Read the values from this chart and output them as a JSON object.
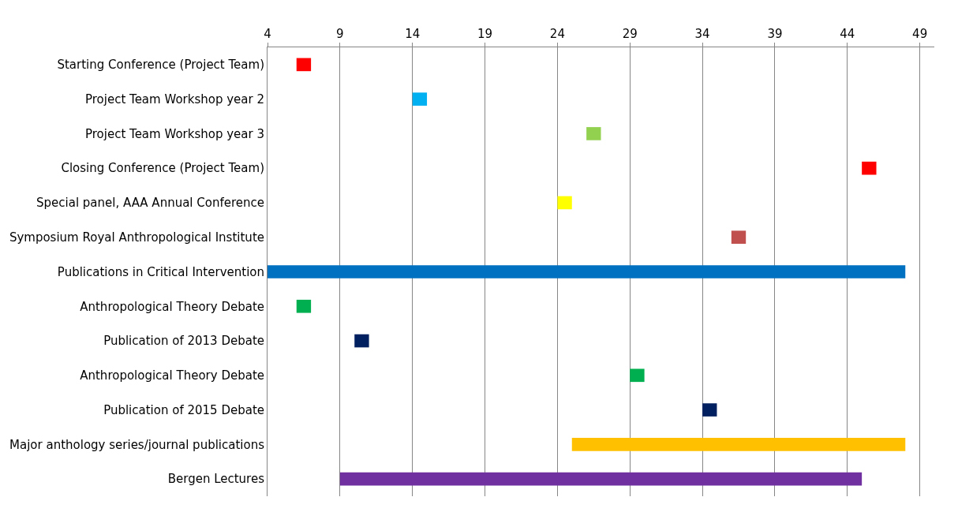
{
  "chart_data": {
    "type": "bar",
    "orientation": "horizontal",
    "categories": [
      "Starting Conference (Project Team)",
      "Project Team Workshop year 2",
      "Project Team Workshop year 3",
      "Closing Conference (Project Team)",
      "Special panel, AAA Annual Conference",
      "Symposium Royal Anthropological Institute",
      "Publications in Critical Intervention",
      "Anthropological Theory Debate",
      "Publication of 2013 Debate",
      "Anthropological Theory Debate",
      "Publication of 2015 Debate",
      "Major anthology series/journal publications",
      "Bergen Lectures"
    ],
    "base": [
      6,
      14,
      26,
      45,
      24,
      36,
      4,
      6,
      10,
      29,
      34,
      25,
      9
    ],
    "values": [
      1,
      1,
      1,
      1,
      1,
      1,
      44,
      1,
      1,
      1,
      1,
      23,
      36
    ],
    "colors": [
      "#ff0000",
      "#00b0f0",
      "#92d050",
      "#ff0000",
      "#ffff00",
      "#c0504d",
      "#0070c0",
      "#00b050",
      "#002060",
      "#00b050",
      "#002060",
      "#ffc000",
      "#7030a0"
    ],
    "xlim": [
      4,
      50
    ],
    "xticks": [
      4,
      9,
      14,
      19,
      24,
      29,
      34,
      39,
      44,
      49
    ],
    "grid": "x"
  }
}
